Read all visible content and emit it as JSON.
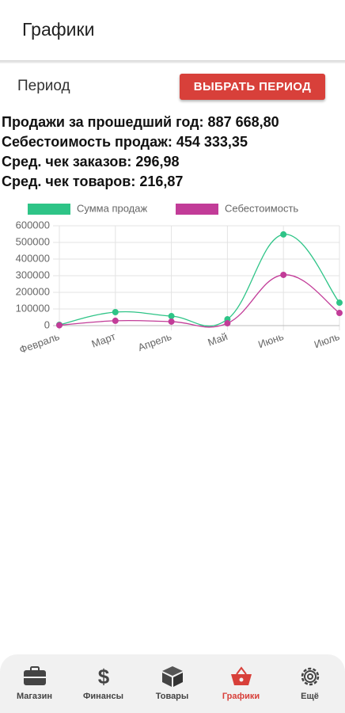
{
  "header": {
    "title": "Графики"
  },
  "period": {
    "label": "Период",
    "button": "ВЫБРАТЬ ПЕРИОД"
  },
  "stats": [
    "Продажи за прошедший год: 887 668,80",
    "Себестоимость продаж: 454 333,35",
    "Сред. чек заказов: 296,98",
    "Сред. чек товаров: 216,87"
  ],
  "chart_data": {
    "type": "line",
    "categories": [
      "Февраль",
      "Март",
      "Апрель",
      "Май",
      "Июнь",
      "Июль"
    ],
    "series": [
      {
        "name": "Сумма продаж",
        "color": "#2ec487",
        "values": [
          5000,
          81000,
          57000,
          38000,
          548000,
          138000
        ]
      },
      {
        "name": "Себестоимость",
        "color": "#c23c98",
        "values": [
          2000,
          29000,
          24000,
          14000,
          305000,
          76000
        ]
      }
    ],
    "ylim": [
      0,
      600000
    ],
    "yticks": [
      0,
      100000,
      200000,
      300000,
      400000,
      500000,
      600000
    ],
    "grid": true,
    "legend": "top"
  },
  "nav": {
    "items": [
      {
        "label": "Магазин",
        "active": false
      },
      {
        "label": "Финансы",
        "active": false
      },
      {
        "label": "Товары",
        "active": false
      },
      {
        "label": "Графики",
        "active": true
      },
      {
        "label": "Ещё",
        "active": false
      }
    ]
  }
}
